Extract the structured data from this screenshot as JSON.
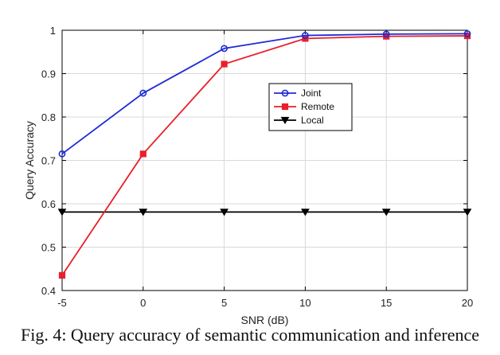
{
  "chart_data": {
    "type": "line",
    "title": "",
    "xlabel": "SNR (dB)",
    "ylabel": "Query Accuracy",
    "x": [
      -5,
      0,
      5,
      10,
      15,
      20
    ],
    "xticks": [
      "-5",
      "0",
      "5",
      "10",
      "15",
      "20"
    ],
    "yticks": [
      "0.4",
      "0.5",
      "0.6",
      "0.7",
      "0.8",
      "0.9",
      "1"
    ],
    "xlim": [
      -5,
      20
    ],
    "ylim": [
      0.4,
      1.0
    ],
    "grid": true,
    "legend_position": "center-right",
    "series": [
      {
        "name": "Joint",
        "values": [
          0.715,
          0.855,
          0.958,
          0.988,
          0.991,
          0.992
        ],
        "color": "#1f2bd6",
        "marker": "circle"
      },
      {
        "name": "Remote",
        "values": [
          0.435,
          0.715,
          0.922,
          0.981,
          0.986,
          0.987
        ],
        "color": "#e8202a",
        "marker": "square"
      },
      {
        "name": "Local",
        "values": [
          0.581,
          0.581,
          0.581,
          0.581,
          0.581,
          0.581
        ],
        "color": "#000000",
        "marker": "triangle-down"
      }
    ]
  },
  "caption": "Fig. 4: Query accuracy of semantic communication and inference"
}
